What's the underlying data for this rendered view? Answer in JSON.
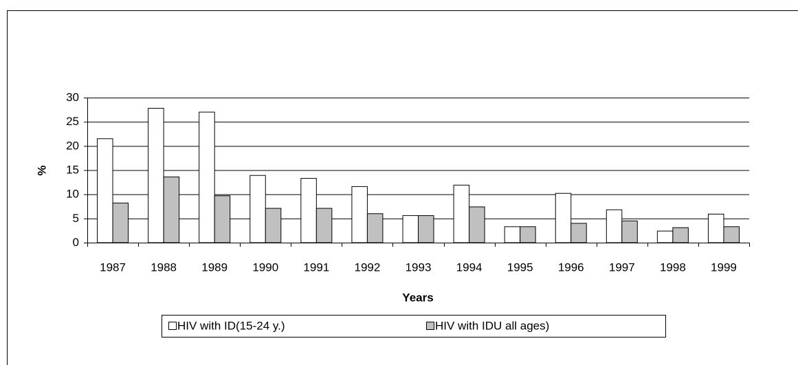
{
  "chart_data": {
    "type": "bar",
    "categories": [
      "1987",
      "1988",
      "1989",
      "1990",
      "1991",
      "1992",
      "1993",
      "1994",
      "1995",
      "1996",
      "1997",
      "1998",
      "1999"
    ],
    "series": [
      {
        "name": "HIV with ID(15-24 y.)",
        "color": "#ffffff",
        "values": [
          21.5,
          27.8,
          27,
          13.9,
          13.3,
          11.6,
          5.6,
          11.9,
          3.3,
          10.2,
          6.8,
          2.4,
          5.9
        ]
      },
      {
        "name": "HIV with IDU all ages)",
        "color": "#c0c0c0",
        "values": [
          8.2,
          13.6,
          9.7,
          7.1,
          7.1,
          6,
          5.6,
          7.4,
          3.3,
          4,
          4.5,
          3.1,
          3.3
        ]
      }
    ],
    "ylabel": "%",
    "xlabel": "Years",
    "ylim": [
      0,
      30
    ],
    "yticks": [
      0,
      5,
      10,
      15,
      20,
      25,
      30
    ],
    "grid": true,
    "legend": "bottom"
  }
}
